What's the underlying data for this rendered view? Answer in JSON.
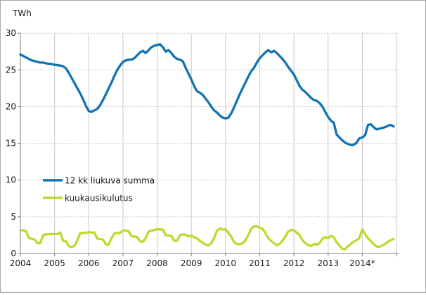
{
  "chart": {
    "unit_label": "TWh"
  },
  "chart_data": {
    "type": "line",
    "title": "",
    "unit_label": "TWh",
    "x_start": "2004-01",
    "x_end": "2014-12",
    "x_frequency": "monthly",
    "x_tick_labels": [
      "2004",
      "2005",
      "2006",
      "2007",
      "2008",
      "2009",
      "2010",
      "2011",
      "2012",
      "2013",
      "2014*"
    ],
    "y_ticks": [
      0,
      5,
      10,
      15,
      20,
      25,
      30
    ],
    "ylim": [
      0,
      30
    ],
    "grid": true,
    "legend_position": "inside-left",
    "axis_color": "#808080",
    "gridline_color": "#c9c9c9",
    "series": [
      {
        "name": "12 kk liukuva summa",
        "color": "#1273b2",
        "values": [
          27.1,
          26.9,
          26.7,
          26.5,
          26.3,
          26.2,
          26.1,
          26.0,
          26.0,
          25.9,
          25.85,
          25.8,
          25.7,
          25.65,
          25.6,
          25.5,
          25.2,
          24.6,
          23.9,
          23.2,
          22.5,
          21.8,
          21.0,
          20.1,
          19.4,
          19.3,
          19.5,
          19.7,
          20.2,
          20.9,
          21.7,
          22.5,
          23.3,
          24.2,
          25.0,
          25.6,
          26.1,
          26.3,
          26.4,
          26.4,
          26.6,
          27.0,
          27.4,
          27.6,
          27.3,
          27.7,
          28.1,
          28.3,
          28.4,
          28.5,
          28.1,
          27.5,
          27.7,
          27.3,
          26.8,
          26.5,
          26.4,
          26.2,
          25.3,
          24.5,
          23.7,
          22.8,
          22.1,
          21.9,
          21.6,
          21.1,
          20.6,
          20.0,
          19.5,
          19.2,
          18.8,
          18.5,
          18.4,
          18.5,
          19.1,
          19.9,
          20.8,
          21.7,
          22.5,
          23.3,
          24.1,
          24.8,
          25.3,
          26.0,
          26.6,
          27.0,
          27.4,
          27.7,
          27.4,
          27.6,
          27.3,
          26.9,
          26.5,
          26.0,
          25.4,
          24.9,
          24.4,
          23.6,
          22.8,
          22.3,
          22.0,
          21.6,
          21.2,
          20.9,
          20.8,
          20.5,
          20.0,
          19.3,
          18.6,
          18.1,
          17.8,
          16.2,
          15.8,
          15.4,
          15.1,
          14.9,
          14.8,
          14.8,
          15.1,
          15.7,
          15.8,
          16.1,
          17.5,
          17.6,
          17.2,
          16.9,
          17.0,
          17.1,
          17.2,
          17.4,
          17.5,
          17.3
        ]
      },
      {
        "name": "kuukausikulutus",
        "color": "#c1d730",
        "values": [
          3.15,
          3.15,
          3.05,
          2.1,
          2.0,
          1.9,
          1.4,
          1.4,
          2.5,
          2.6,
          2.65,
          2.65,
          2.65,
          2.65,
          2.85,
          1.7,
          1.65,
          1.0,
          0.85,
          1.05,
          1.8,
          2.75,
          2.8,
          2.8,
          2.9,
          2.85,
          2.85,
          2.0,
          1.95,
          1.9,
          1.25,
          1.2,
          2.1,
          2.75,
          2.8,
          2.8,
          3.1,
          3.15,
          3.0,
          2.35,
          2.3,
          2.25,
          1.65,
          1.6,
          2.1,
          3.0,
          3.1,
          3.2,
          3.3,
          3.3,
          3.25,
          2.5,
          2.45,
          2.4,
          1.7,
          1.75,
          2.5,
          2.6,
          2.55,
          2.3,
          2.45,
          2.2,
          2.05,
          1.7,
          1.45,
          1.2,
          1.1,
          1.4,
          2.1,
          3.1,
          3.4,
          3.25,
          3.3,
          2.8,
          2.3,
          1.55,
          1.3,
          1.25,
          1.4,
          1.8,
          2.5,
          3.35,
          3.7,
          3.7,
          3.5,
          3.35,
          2.8,
          2.1,
          1.7,
          1.4,
          1.15,
          1.3,
          1.75,
          2.3,
          3.0,
          3.2,
          3.15,
          2.85,
          2.5,
          1.8,
          1.4,
          1.15,
          1.0,
          1.3,
          1.2,
          1.4,
          2.0,
          2.25,
          2.1,
          2.4,
          2.2,
          1.55,
          1.1,
          0.6,
          0.55,
          1.0,
          1.3,
          1.6,
          1.8,
          2.1,
          3.3,
          2.6,
          2.1,
          1.7,
          1.25,
          0.95,
          0.9,
          1.1,
          1.3,
          1.6,
          1.8,
          2.0
        ]
      }
    ]
  }
}
